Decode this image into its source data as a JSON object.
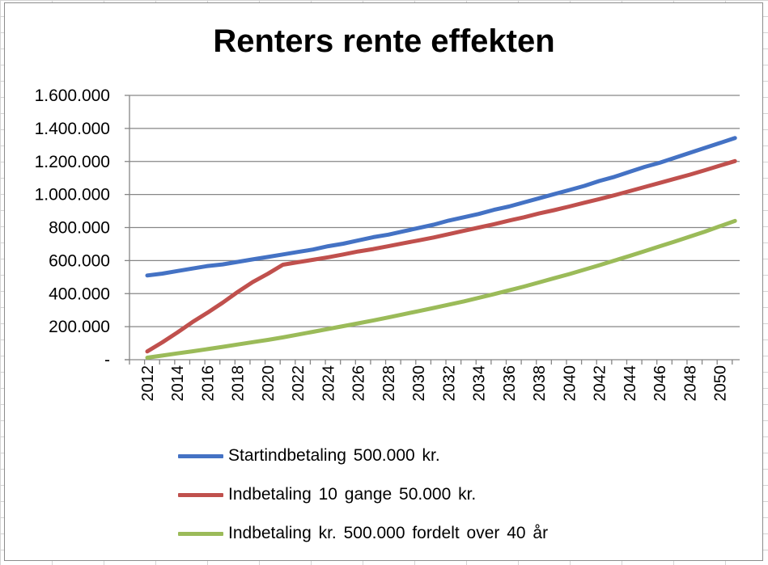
{
  "chart_data": {
    "type": "line",
    "title": "Renters rente effekten",
    "xlabel": "",
    "ylabel": "",
    "ylim": [
      0,
      1600000
    ],
    "y_ticks": [
      {
        "value": 0,
        "label": "-"
      },
      {
        "value": 200000,
        "label": "200.000"
      },
      {
        "value": 400000,
        "label": "400.000"
      },
      {
        "value": 600000,
        "label": "600.000"
      },
      {
        "value": 800000,
        "label": "800.000"
      },
      {
        "value": 1000000,
        "label": "1.000.000"
      },
      {
        "value": 1200000,
        "label": "1.200.000"
      },
      {
        "value": 1400000,
        "label": "1.400.000"
      },
      {
        "value": 1600000,
        "label": "1.600.000"
      }
    ],
    "x": [
      2012,
      2013,
      2014,
      2015,
      2016,
      2017,
      2018,
      2019,
      2020,
      2021,
      2022,
      2023,
      2024,
      2025,
      2026,
      2027,
      2028,
      2029,
      2030,
      2031,
      2032,
      2033,
      2034,
      2035,
      2036,
      2037,
      2038,
      2039,
      2040,
      2041,
      2042,
      2043,
      2044,
      2045,
      2046,
      2047,
      2048,
      2049,
      2050,
      2051
    ],
    "x_tick_labels": [
      "2012",
      "2014",
      "2016",
      "2018",
      "2020",
      "2022",
      "2024",
      "2026",
      "2028",
      "2030",
      "2032",
      "2034",
      "2036",
      "2038",
      "2040",
      "2042",
      "2044",
      "2046",
      "2048",
      "2050"
    ],
    "grid": "horizontal",
    "legend_position": "bottom",
    "series": [
      {
        "name": "Startindbetaling  500.000 kr.",
        "color": "#4472c4",
        "values": [
          510000,
          521000,
          537000,
          552000,
          567000,
          577000,
          592000,
          607000,
          622000,
          637000,
          652000,
          667000,
          687000,
          702000,
          722000,
          742000,
          757000,
          777000,
          797000,
          817000,
          842000,
          862000,
          882000,
          907000,
          927000,
          952000,
          977000,
          1002000,
          1027000,
          1052000,
          1082000,
          1107000,
          1137000,
          1167000,
          1192000,
          1222000,
          1252000,
          1282000,
          1312000,
          1342000
        ]
      },
      {
        "name": "Indbetaling  10 gange 50.000 kr.",
        "color": "#c0504d",
        "values": [
          50000,
          105000,
          165000,
          228000,
          285000,
          345000,
          410000,
          470000,
          520000,
          575000,
          590000,
          605000,
          620000,
          637000,
          655000,
          670000,
          687000,
          705000,
          722000,
          740000,
          760000,
          780000,
          800000,
          820000,
          842000,
          862000,
          885000,
          905000,
          927000,
          950000,
          972000,
          995000,
          1020000,
          1045000,
          1070000,
          1095000,
          1120000,
          1147000,
          1175000,
          1202000
        ]
      },
      {
        "name": "Indbetaling  kr. 500.000 fordelt  over 40 år",
        "color": "#9bbb59",
        "values": [
          12000,
          25000,
          38000,
          51000,
          64000,
          78000,
          92000,
          106000,
          120000,
          135000,
          152000,
          169000,
          186000,
          203000,
          220000,
          238000,
          256000,
          275000,
          294000,
          313000,
          333000,
          353000,
          375000,
          397000,
          420000,
          443000,
          468000,
          493000,
          518000,
          545000,
          572000,
          600000,
          628000,
          657000,
          686000,
          715000,
          745000,
          775000,
          808000,
          840000
        ]
      }
    ]
  }
}
